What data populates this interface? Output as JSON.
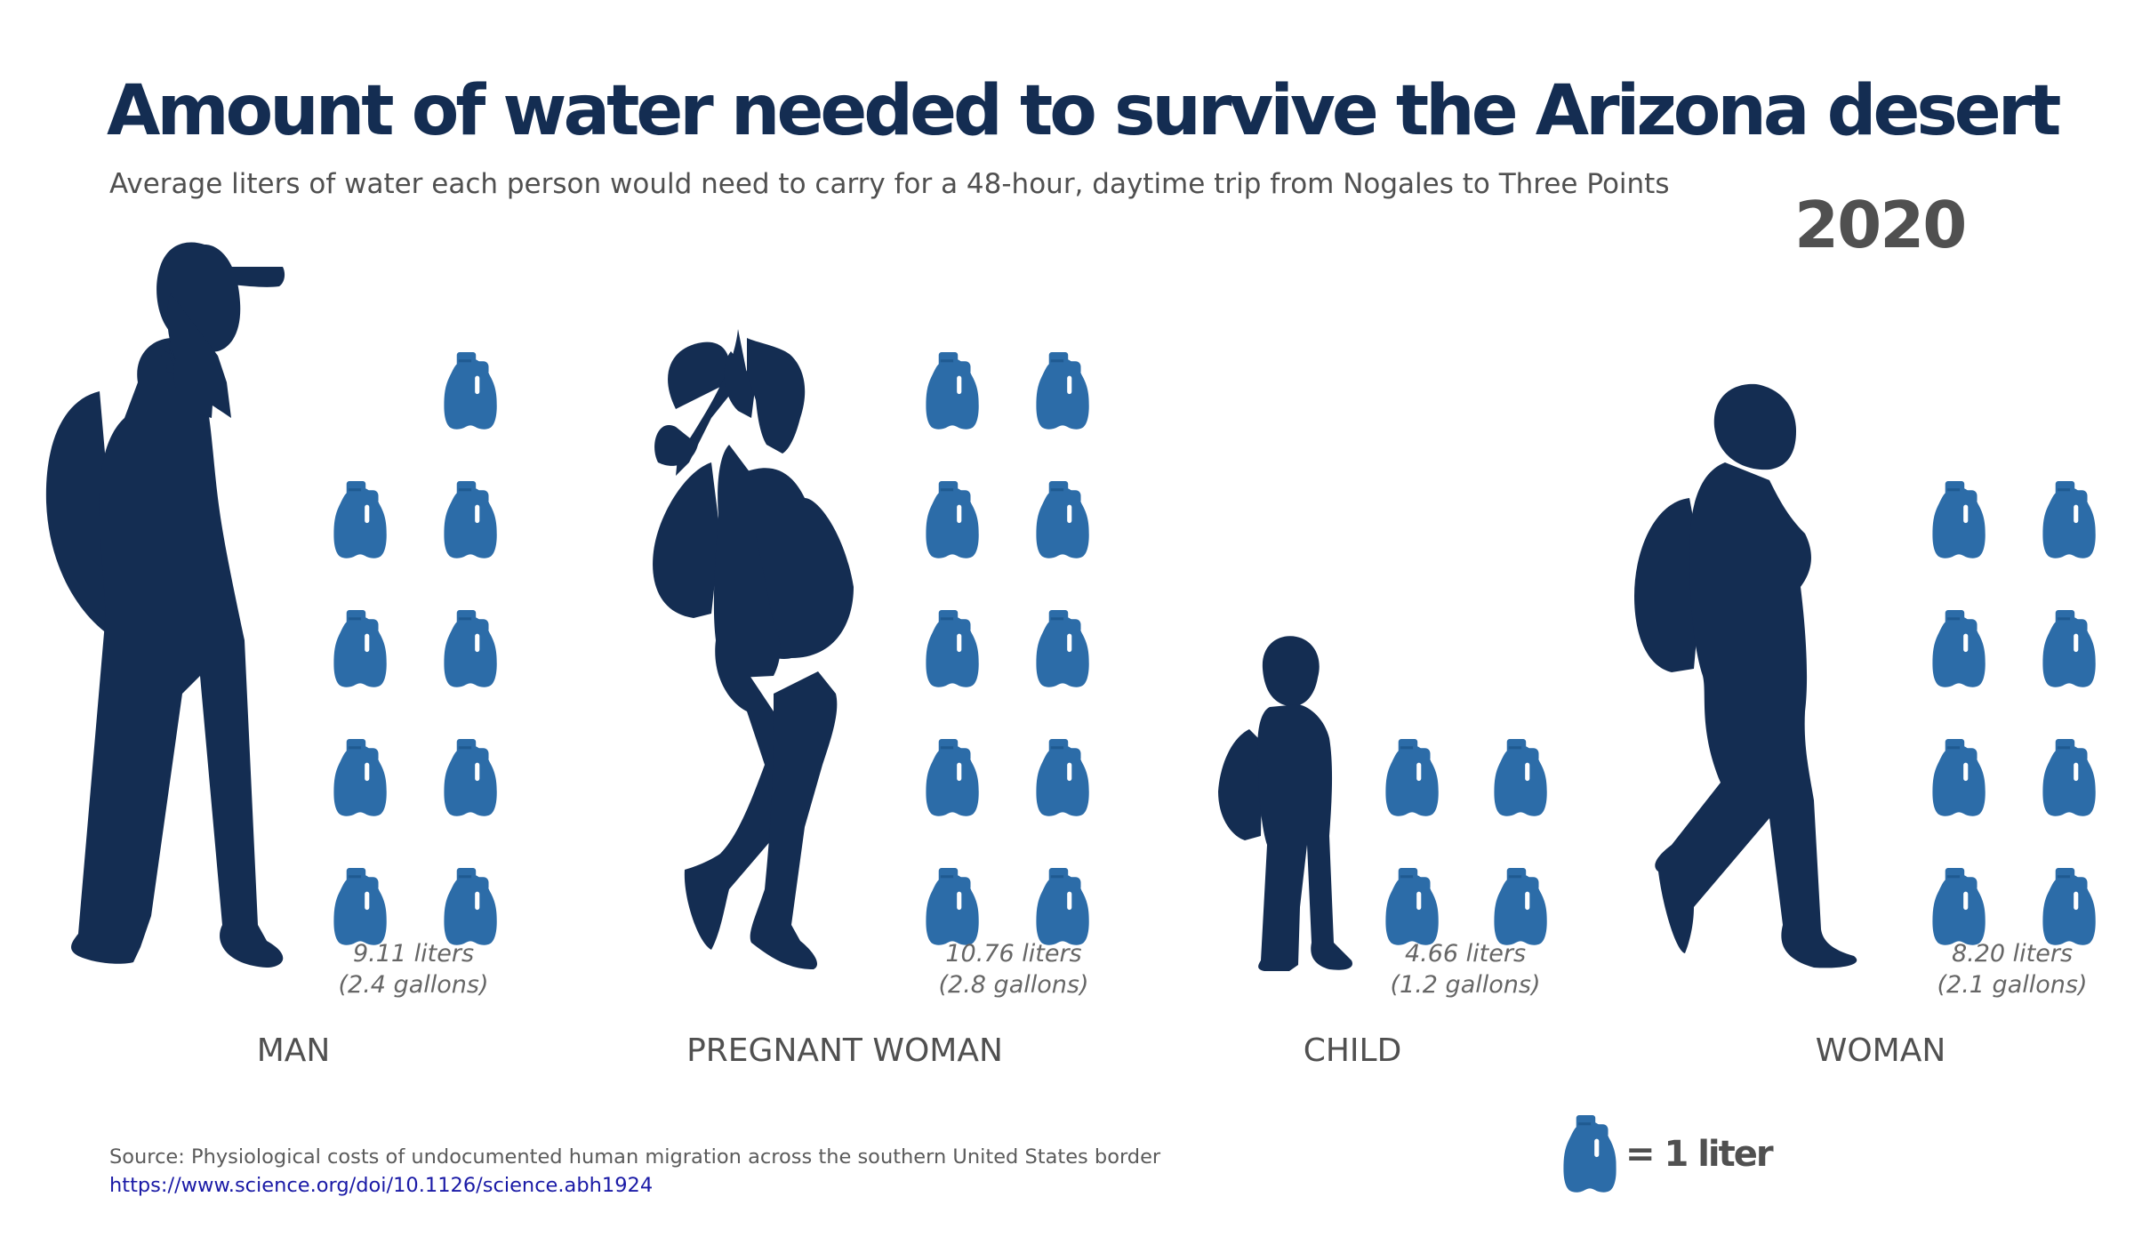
{
  "title": "Amount of water needed to survive the Arizona desert",
  "subtitle": "Average liters of water each person would need to carry for a 48-hour, daytime trip from Nogales to Three Points",
  "year": "2020",
  "source": "Source: Physiological costs of undocumented human migration across the southern United States border",
  "source_url": "https://www.science.org/doi/10.1126/science.abh1924",
  "legend": {
    "icon": "water-jug-icon",
    "label": "= 1 liter"
  },
  "colors": {
    "title": "#142d52",
    "silhouette": "#142d52",
    "jug": "#2c6ca8",
    "text": "#505050"
  },
  "chart_data": {
    "type": "pictograph",
    "title": "Amount of water needed to survive the Arizona desert",
    "unit": "liters",
    "icon_unit": "1 liter per jug",
    "categories": [
      "MAN",
      "PREGNANT WOMAN",
      "CHILD",
      "WOMAN"
    ],
    "values": [
      9.11,
      10.76,
      4.66,
      8.2
    ],
    "gallons": [
      2.4,
      2.8,
      1.2,
      2.1
    ],
    "value_labels": [
      "9.11 liters",
      "10.76 liters",
      "4.66 liters",
      "8.20 liters"
    ],
    "gallon_labels": [
      "(2.4 gallons)",
      "(2.8 gallons)",
      "(1.2 gallons)",
      "(2.1 gallons)"
    ],
    "jug_counts": [
      9,
      10,
      4,
      8
    ]
  }
}
